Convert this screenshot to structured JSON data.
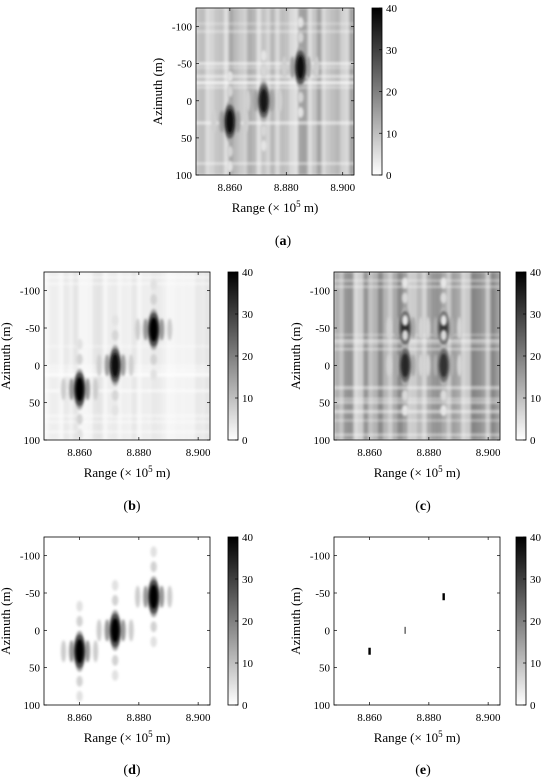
{
  "chart_data": [
    {
      "type": "heatmap",
      "caption_letter": "a",
      "xlabel": "Range (× 10",
      "xlabel_exp": "5",
      "xlabel_unit": " m)",
      "ylabel": "Azimuth (m)",
      "xticks": [
        "8.860",
        "8.880",
        "8.900"
      ],
      "yticks": [
        "-100",
        "-50",
        "0",
        "50",
        "100"
      ],
      "colorbar_ticks": [
        "40",
        "30",
        "20",
        "10",
        "0"
      ],
      "xlim": [
        8.848,
        8.904
      ],
      "ylim": [
        -125,
        100
      ],
      "clim": [
        0,
        40
      ],
      "targets": [
        {
          "range": 8.86,
          "azimuth": 28,
          "magnitude": 38
        },
        {
          "range": 8.872,
          "azimuth": 0,
          "magnitude": 36
        },
        {
          "range": 8.885,
          "azimuth": -45,
          "magnitude": 38
        }
      ],
      "background_level": 14
    },
    {
      "type": "heatmap",
      "caption_letter": "b",
      "xlabel": "Range (× 10",
      "xlabel_exp": "5",
      "xlabel_unit": " m)",
      "ylabel": "Azimuth (m)",
      "xticks": [
        "8.860",
        "8.880",
        "8.900"
      ],
      "yticks": [
        "-100",
        "-50",
        "0",
        "50",
        "100"
      ],
      "colorbar_ticks": [
        "40",
        "30",
        "20",
        "10",
        "0"
      ],
      "xlim": [
        8.848,
        8.904
      ],
      "ylim": [
        -125,
        100
      ],
      "clim": [
        0,
        40
      ],
      "targets": [
        {
          "range": 8.86,
          "azimuth": 32,
          "magnitude": 40
        },
        {
          "range": 8.872,
          "azimuth": 0,
          "magnitude": 38
        },
        {
          "range": 8.885,
          "azimuth": -48,
          "magnitude": 40
        }
      ],
      "background_level": 4
    },
    {
      "type": "heatmap",
      "caption_letter": "c",
      "xlabel": "Range (× 10",
      "xlabel_exp": "5",
      "xlabel_unit": " m)",
      "ylabel": "Azimuth (m)",
      "xticks": [
        "8.860",
        "8.880",
        "8.900"
      ],
      "yticks": [
        "-100",
        "-50",
        "0",
        "50",
        "100"
      ],
      "colorbar_ticks": [
        "40",
        "30",
        "20",
        "10",
        "0"
      ],
      "xlim": [
        8.848,
        8.904
      ],
      "ylim": [
        -125,
        100
      ],
      "clim": [
        0,
        40
      ],
      "targets": [
        {
          "range": 8.872,
          "azimuth": -50,
          "magnitude": 34
        },
        {
          "range": 8.872,
          "azimuth": 0,
          "magnitude": 34
        },
        {
          "range": 8.885,
          "azimuth": -50,
          "magnitude": 32
        },
        {
          "range": 8.885,
          "azimuth": 0,
          "magnitude": 32
        }
      ],
      "background_level": 18
    },
    {
      "type": "heatmap",
      "caption_letter": "d",
      "xlabel": "Range (× 10",
      "xlabel_exp": "5",
      "xlabel_unit": " m)",
      "ylabel": "Azimuth (m)",
      "xticks": [
        "8.860",
        "8.880",
        "8.900"
      ],
      "yticks": [
        "-100",
        "-50",
        "0",
        "50",
        "100"
      ],
      "colorbar_ticks": [
        "40",
        "30",
        "20",
        "10",
        "0"
      ],
      "xlim": [
        8.848,
        8.904
      ],
      "ylim": [
        -125,
        100
      ],
      "clim": [
        0,
        40
      ],
      "targets": [
        {
          "range": 8.86,
          "azimuth": 28,
          "magnitude": 40
        },
        {
          "range": 8.872,
          "azimuth": 0,
          "magnitude": 40
        },
        {
          "range": 8.885,
          "azimuth": -45,
          "magnitude": 40
        }
      ],
      "background_level": 0
    },
    {
      "type": "heatmap",
      "caption_letter": "e",
      "xlabel": "Range (× 10",
      "xlabel_exp": "5",
      "xlabel_unit": " m)",
      "ylabel": "Azimuth (m)",
      "xticks": [
        "8.860",
        "8.880",
        "8.900"
      ],
      "yticks": [
        "-100",
        "-50",
        "0",
        "50",
        "100"
      ],
      "colorbar_ticks": [
        "40",
        "30",
        "20",
        "10",
        "0"
      ],
      "xlim": [
        8.848,
        8.904
      ],
      "ylim": [
        -125,
        100
      ],
      "clim": [
        0,
        40
      ],
      "targets": [
        {
          "range": 8.86,
          "azimuth": 28,
          "magnitude": 40
        },
        {
          "range": 8.872,
          "azimuth": 0,
          "magnitude": 25
        },
        {
          "range": 8.885,
          "azimuth": -45,
          "magnitude": 40
        }
      ],
      "background_level": 0
    }
  ]
}
